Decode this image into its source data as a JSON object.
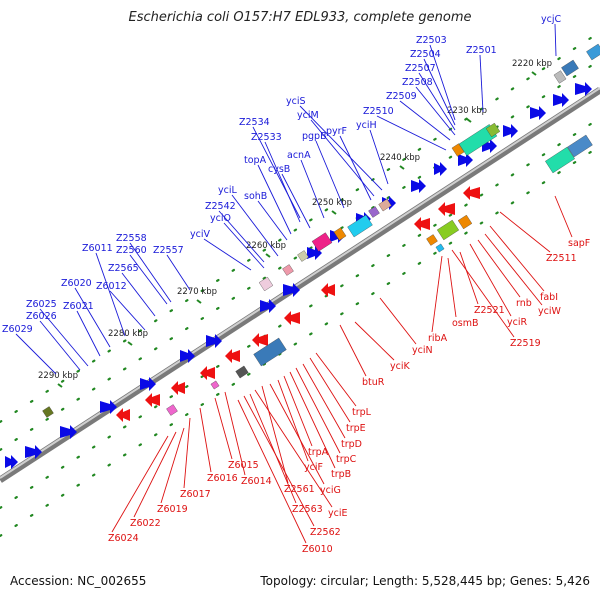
{
  "title": "Escherichia coli O157:H7 EDL933, complete genome",
  "footer": {
    "accession": "Accession: NC_002655",
    "summary": "Topology: circular; Length: 5,528,445 bp; Genes: 5,426"
  },
  "colors": {
    "forward_label": "#1a1ad8",
    "reverse_label": "#dd1111",
    "forward_feature": "#0a0ae6",
    "reverse_feature": "#ee1111",
    "axis": "#555555",
    "tick": "#228822"
  },
  "scale": [
    "2220 kbp",
    "2230 kbp",
    "2240 kbp",
    "2250 kbp",
    "2260 kbp",
    "2270 kbp",
    "2280 kbp",
    "2290 kbp"
  ],
  "forward_labels": [
    "ycjC",
    "Z2501",
    "Z2503",
    "Z2504",
    "Z2507",
    "Z2508",
    "Z2509",
    "Z2510",
    "yciH",
    "yciS",
    "yciM",
    "pyrF",
    "pgpB",
    "Z2534",
    "Z2533",
    "acnA",
    "topA",
    "cysB",
    "sohB",
    "yciL",
    "Z2542",
    "yciO",
    "yciV",
    "Z2558",
    "Z2560",
    "Z2557",
    "Z6011",
    "Z2565",
    "Z6012",
    "Z6020",
    "Z6021",
    "Z6025",
    "Z6026",
    "Z6029"
  ],
  "reverse_labels": [
    "sapF",
    "Z2511",
    "fabI",
    "yciW",
    "rnb",
    "yciR",
    "Z2521",
    "Z2519",
    "osmB",
    "ribA",
    "yciN",
    "yciK",
    "btuR",
    "trpL",
    "trpE",
    "trpD",
    "trpC",
    "trpB",
    "trpA",
    "yciF",
    "yciG",
    "Z2561",
    "yciE",
    "Z2563",
    "Z2562",
    "Z6010",
    "Z6014",
    "Z6015",
    "Z6016",
    "Z6017",
    "Z6019",
    "Z6022",
    "Z6024"
  ]
}
